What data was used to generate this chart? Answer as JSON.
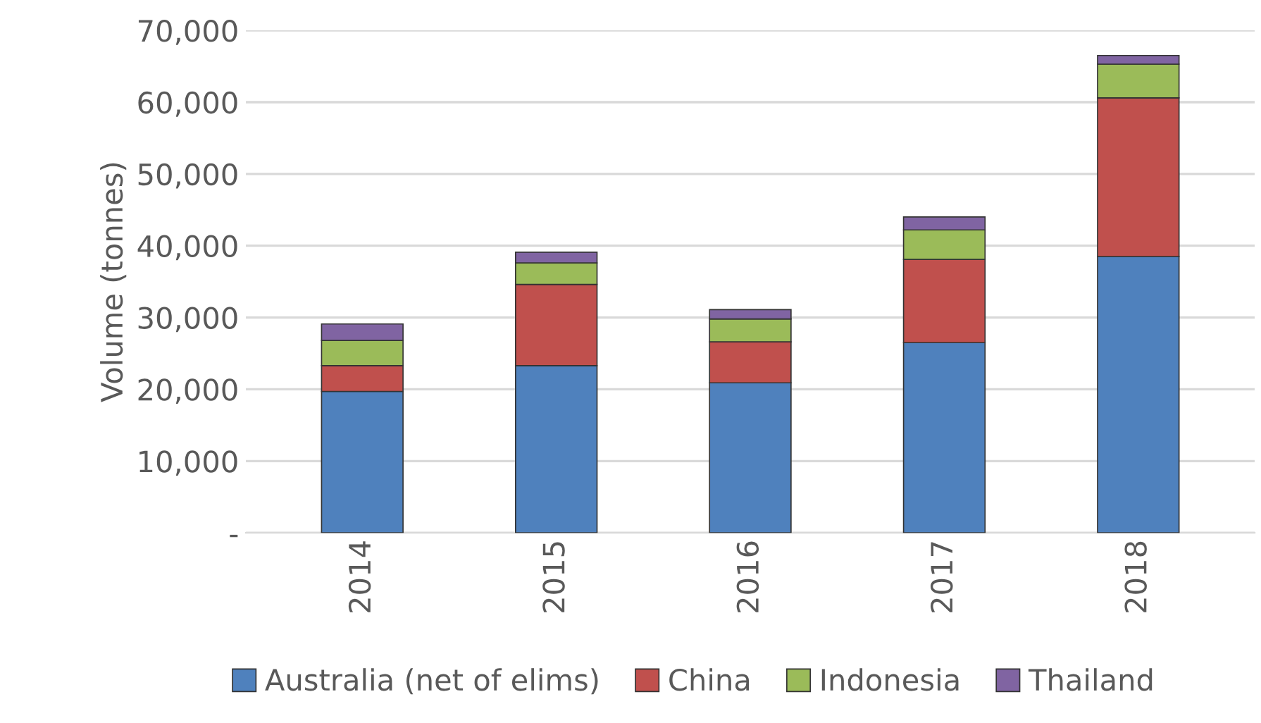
{
  "chart_data": {
    "type": "bar",
    "stacked": true,
    "ylabel": "Volume (tonnes)",
    "categories": [
      "2014",
      "2015",
      "2016",
      "2017",
      "2018"
    ],
    "series": [
      {
        "name": "Australia (net of elims)",
        "color": "#4f81bd",
        "values": [
          19700,
          23300,
          20900,
          26500,
          38500
        ]
      },
      {
        "name": "China",
        "color": "#c0504d",
        "values": [
          3600,
          11300,
          5700,
          11600,
          22100
        ]
      },
      {
        "name": "Indonesia",
        "color": "#9bbb59",
        "values": [
          3500,
          3000,
          3200,
          4100,
          4700
        ]
      },
      {
        "name": "Thailand",
        "color": "#8064a2",
        "values": [
          2300,
          1500,
          1300,
          1800,
          1200
        ]
      }
    ],
    "ylim": [
      0,
      70000
    ],
    "yticks": [
      {
        "value": 0,
        "label": "-"
      },
      {
        "value": 10000,
        "label": "10,000"
      },
      {
        "value": 20000,
        "label": "20,000"
      },
      {
        "value": 30000,
        "label": "30,000"
      },
      {
        "value": 40000,
        "label": "40,000"
      },
      {
        "value": 50000,
        "label": "50,000"
      },
      {
        "value": 60000,
        "label": "60,000"
      },
      {
        "value": 70000,
        "label": "70,000"
      }
    ],
    "grid": "y",
    "legend": "bottom"
  }
}
